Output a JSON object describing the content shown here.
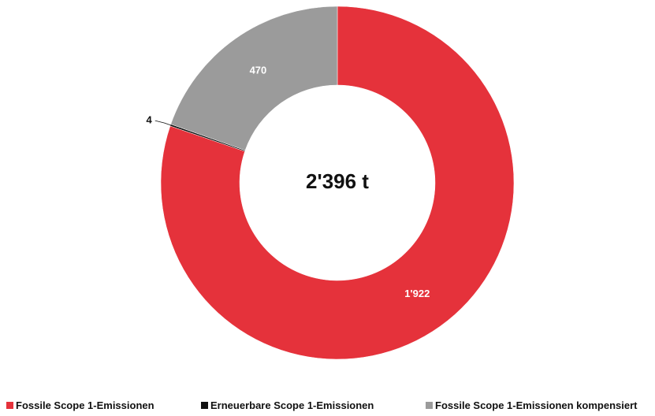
{
  "chart_data": {
    "type": "donut",
    "center_label": "2'396 t",
    "categories": [
      "Fossile Scope 1-Emissionen",
      "Erneuerbare Scope 1-Emissionen",
      "Fossile Scope 1-Emissionen kompensiert"
    ],
    "values": [
      1922,
      4,
      470
    ],
    "value_labels": [
      "1'922",
      "4",
      "470"
    ],
    "colors": [
      "#e5323b",
      "#111111",
      "#9b9b9b"
    ]
  }
}
